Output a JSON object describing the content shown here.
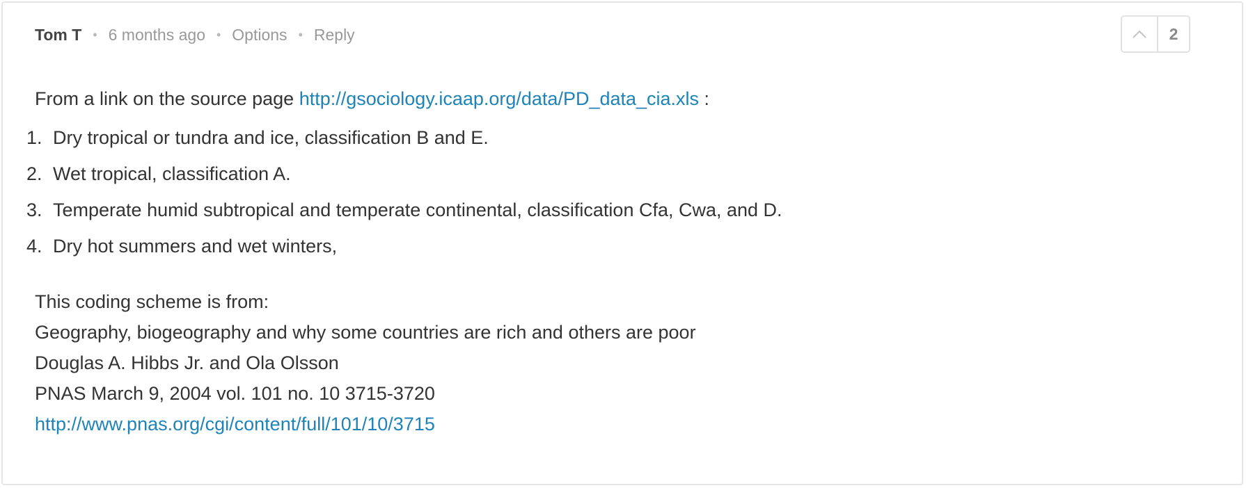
{
  "comment": {
    "author": "Tom T",
    "time": "6 months ago",
    "options_label": "Options",
    "reply_label": "Reply",
    "separator": "•",
    "vote_count": "2",
    "vote_icon": "chevron-up-icon",
    "intro_text": "From a link on the source page ",
    "intro_link": "http://gsociology.icaap.org/data/PD_data_cia.xls",
    "intro_suffix": " :",
    "list_items": [
      {
        "num": "1.",
        "text": "Dry tropical or tundra and ice, classification B and E."
      },
      {
        "num": "2.",
        "text": "Wet tropical, classification A."
      },
      {
        "num": "3.",
        "text": "Temperate humid subtropical and temperate continental, classification Cfa, Cwa, and D."
      },
      {
        "num": "4.",
        "text": "Dry hot summers and wet winters,"
      }
    ],
    "ref_lines": [
      "This coding scheme is from:",
      "Geography, biogeography and why some countries are rich and others are poor",
      "Douglas A. Hibbs Jr. and Ola Olsson",
      "PNAS March 9, 2004 vol. 101 no. 10 3715-3720"
    ],
    "ref_link": "http://www.pnas.org/cgi/content/full/101/10/3715"
  },
  "colors": {
    "link": "#1e83b8",
    "text": "#333333",
    "muted": "#999999",
    "border": "#e5e5e5"
  }
}
